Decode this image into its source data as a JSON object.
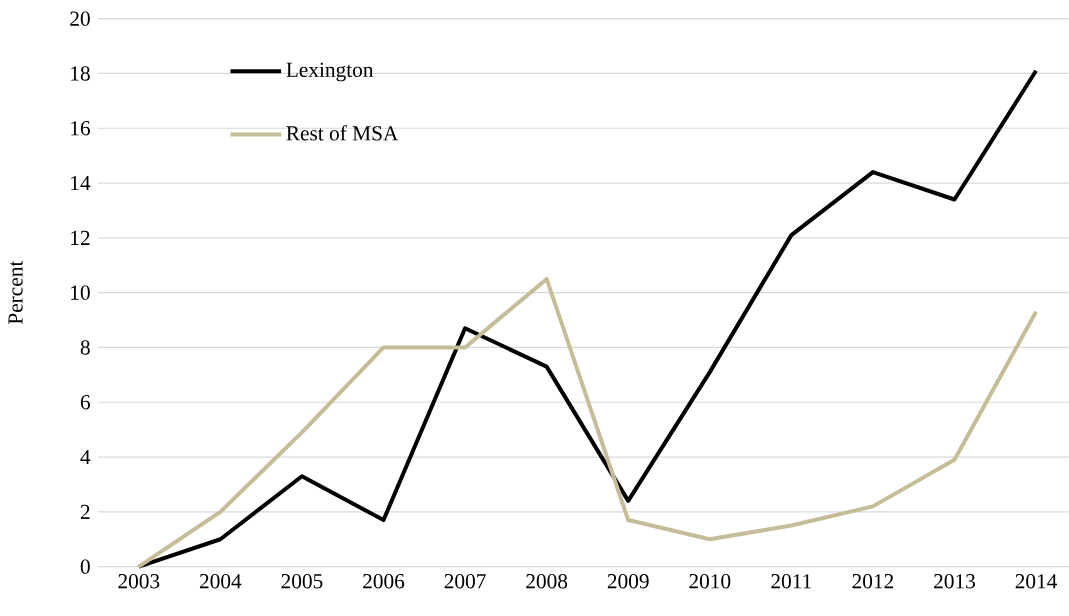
{
  "chart_data": {
    "type": "line",
    "ylabel": "Percent",
    "categories": [
      "2003",
      "2004",
      "2005",
      "2006",
      "2007",
      "2008",
      "2009",
      "2010",
      "2011",
      "2012",
      "2013",
      "2014"
    ],
    "series": [
      {
        "name": "Lexington",
        "color": "#000000",
        "values": [
          0,
          1.0,
          3.3,
          1.7,
          8.7,
          7.3,
          2.4,
          7.1,
          12.1,
          14.4,
          13.4,
          18.1
        ]
      },
      {
        "name": "Rest of MSA",
        "color": "#c4bd97",
        "values": [
          0,
          2.0,
          4.9,
          8.0,
          8.0,
          10.5,
          1.7,
          1.0,
          1.5,
          2.2,
          3.9,
          9.3
        ]
      }
    ],
    "ylim": [
      0,
      20
    ],
    "yticks": [
      0,
      2,
      4,
      6,
      8,
      10,
      12,
      14,
      16,
      18,
      20
    ],
    "grid": "y",
    "legend": "top left",
    "marker": "none",
    "line_style": "solid"
  }
}
